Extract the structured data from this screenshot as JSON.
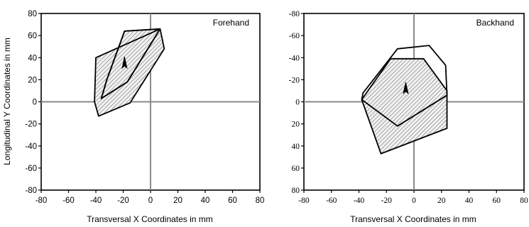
{
  "chart_data": [
    {
      "type": "area",
      "title": "Forehand",
      "xlabel": "Transversal X Coordinates in mm",
      "ylabel": "Longitudinal  Y Coordinates in mm",
      "xlim": [
        -80,
        80
      ],
      "ylim": [
        -80,
        80
      ],
      "xticks": [
        -80,
        -60,
        -40,
        -20,
        0,
        20,
        40,
        60,
        80
      ],
      "yticks": [
        -80,
        -60,
        -40,
        -20,
        0,
        20,
        40,
        60,
        80
      ],
      "xtick_labels": [
        "-80",
        "-60",
        "-40",
        "-20",
        "0",
        "20",
        "40",
        "60",
        "80"
      ],
      "ytick_labels": [
        "-80",
        "-60",
        "-40",
        "-20",
        "0",
        "20",
        "40",
        "60",
        "80"
      ],
      "series": [
        {
          "fill": "hatched",
          "points": [
            [
              -40,
              40
            ],
            [
              7,
              66
            ],
            [
              -17,
              18
            ],
            [
              -36,
              3
            ],
            [
              -32,
              20
            ],
            [
              -19,
              64
            ],
            [
              7,
              66
            ],
            [
              10,
              48
            ],
            [
              -15,
              -1
            ],
            [
              -38,
              -13
            ],
            [
              -41,
              0
            ],
            [
              -40,
              40
            ]
          ]
        },
        {
          "fill": "none",
          "points": [
            [
              -19,
              64
            ],
            [
              -32,
              20
            ],
            [
              -36,
              3
            ],
            [
              -17,
              18
            ],
            [
              7,
              66
            ],
            [
              -19,
              64
            ]
          ]
        }
      ],
      "marker": {
        "x": -19,
        "y": 35,
        "shape": "arrow-up"
      },
      "crosshair": {
        "x": 0,
        "y": 0
      }
    },
    {
      "type": "area",
      "title": "Backhand",
      "xlabel": "Transversal X Coordinates in mm",
      "ylabel": "",
      "xlim": [
        -80,
        80
      ],
      "ylim": [
        -80,
        80
      ],
      "xticks": [
        -80,
        -60,
        -40,
        -20,
        0,
        20,
        40,
        60,
        80
      ],
      "yticks": [
        -80,
        -60,
        -40,
        -20,
        0,
        20,
        40,
        60,
        80
      ],
      "xtick_labels": [
        "-80",
        "-60",
        "-40",
        "-20",
        "0",
        "20",
        "40",
        "60",
        "80"
      ],
      "ytick_labels": [
        "80",
        "60",
        "40",
        "20",
        "0",
        "-20",
        "-40",
        "-60",
        "-80"
      ],
      "series": [
        {
          "fill": "hatched",
          "points": [
            [
              -17,
              39
            ],
            [
              7,
              39
            ],
            [
              24,
              10
            ],
            [
              24,
              -24
            ],
            [
              -24,
              -47
            ],
            [
              -38,
              2
            ],
            [
              -17,
              39
            ]
          ]
        },
        {
          "fill": "none",
          "points": [
            [
              -37,
              8
            ],
            [
              -12,
              48
            ],
            [
              11,
              51
            ],
            [
              23,
              33
            ],
            [
              24,
              6
            ],
            [
              -12,
              -22
            ],
            [
              -38,
              2
            ]
          ]
        }
      ],
      "marker": {
        "x": -6,
        "y": 12,
        "shape": "arrow-up"
      },
      "crosshair": {
        "x": 0,
        "y": 0
      }
    }
  ]
}
